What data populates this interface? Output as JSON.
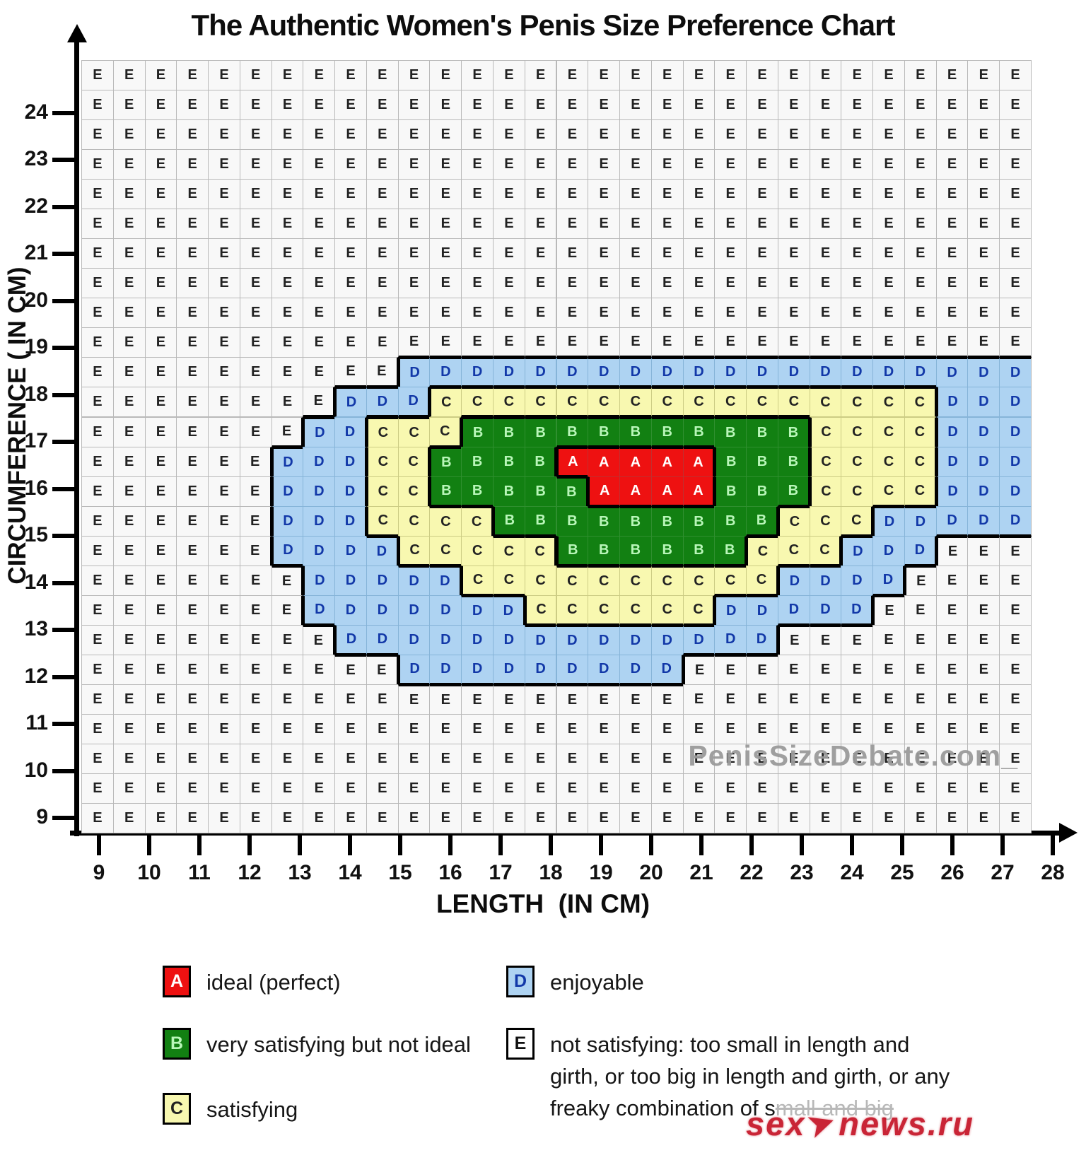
{
  "title": "The Authentic Women's Penis Size Preference Chart",
  "watermarks": {
    "plot": "PenisSizeDebate.com_",
    "brand_prefix": "sex",
    "brand_suffix": "news.ru",
    "brand_figure_icon": "➤"
  },
  "chart_data": {
    "type": "heatmap",
    "title": "The Authentic Women's Penis Size Preference Chart",
    "xlabel": "LENGTH  (IN CM)",
    "ylabel": "CIRCUMFERENCE ( IN CM)",
    "x_ticks": [
      9,
      10,
      11,
      12,
      13,
      14,
      15,
      16,
      17,
      18,
      19,
      20,
      21,
      22,
      23,
      24,
      25,
      26,
      27,
      28
    ],
    "y_ticks": [
      9,
      10,
      11,
      12,
      13,
      14,
      15,
      16,
      17,
      18,
      19,
      20,
      21,
      22,
      23,
      24
    ],
    "x_range": [
      9,
      28
    ],
    "y_range": [
      9,
      24
    ],
    "grid_note": "rows listed top (largest circumference) to bottom; 30 columns spanning length axis",
    "grid_letters": [
      "EEEEEEEEEEEEEEEEEEEEEEEEEEEEEE",
      "EEEEEEEEEEEEEEEEEEEEEEEEEEEEEE",
      "EEEEEEEEEEEEEEEEEEEEEEEEEEEEEE",
      "EEEEEEEEEEEEEEEEEEEEEEEEEEEEEE",
      "EEEEEEEEEEEEEEEEEEEEEEEEEEEEEE",
      "EEEEEEEEEEEEEEEEEEEEEEEEEEEEEE",
      "EEEEEEEEEEEEEEEEEEEEEEEEEEEEEE",
      "EEEEEEEEEEEEEEEEEEEEEEEEEEEEEE",
      "EEEEEEEEEEEEEEEEEEEEEEEEEEEEEE",
      "EEEEEEEEEEEEEEEEEEEEEEEEEEEEEE",
      "EEEEEEEEEEDDDDDDDDDDDDDDDDDDDD",
      "EEEEEEEEDDDCCCCCCCCCCCCCCCCDDD",
      "EEEEEEEDDCCCBBBBBBBBBBBCCCCDDD",
      "EEEEEEDDDCCBBBBAAAAABBBCCCCDDD",
      "EEEEEEDDDCCBBBBBAAAABBBCCCCDDD",
      "EEEEEEDDDCCCCBBBBBBBBBCCCDDDDD",
      "EEEEEEDDDDCCCCCBBBBBBCCCDDDEEE",
      "EEEEEEEDDDDDCCCCCCCCCCDDDDEEEE",
      "EEEEEEEDDDDDDDCCCCCCDDDDDEEEEE",
      "EEEEEEEEDDDDDDDDDDDDDDEEEEEEEE",
      "EEEEEEEEEEDDDDDDDDDEEEEEEEEEEE",
      "EEEEEEEEEEEEEEEEEEEEEEEEEEEEEE",
      "EEEEEEEEEEEEEEEEEEEEEEEEEEEEEE",
      "EEEEEEEEEEEEEEEEEEEEEEEEEEEEEE",
      "EEEEEEEEEEEEEEEEEEEEEEEEEEEEEE",
      "EEEEEEEEEEEEEEEEEEEEEEEEEEEEEE"
    ],
    "legend": [
      {
        "key": "A",
        "label": "ideal (perfect)"
      },
      {
        "key": "B",
        "label": "very satisfying but not ideal"
      },
      {
        "key": "C",
        "label": "satisfying"
      },
      {
        "key": "D",
        "label": "enjoyable"
      },
      {
        "key": "E",
        "label": "not satisfying: too small in length and girth, or too big in length and girth, or any freaky combination of small and big",
        "lines": [
          "not satisfying: too small in length and",
          "girth, or too big in length and girth, or any"
        ],
        "line3_visible": "freaky combination of s",
        "line3_faded": "mall and big"
      }
    ],
    "legend_position": "below chart, two columns",
    "colors": {
      "A": {
        "bg": "#ee1111",
        "fg": "#ffffff",
        "divider": "#c22f2f"
      },
      "B": {
        "bg": "#128012",
        "fg": "#b9f6b9",
        "divider": "#2f8f2f"
      },
      "C": {
        "bg": "#f8f8b0",
        "fg": "#222222",
        "divider": "#cccc84"
      },
      "D": {
        "bg": "#aed3f2",
        "fg": "#1238a8",
        "divider": "#86b4d8"
      },
      "E": {
        "bg": "#f8f8f8",
        "fg": "#222222",
        "divider": "#b9b9b9"
      }
    }
  }
}
